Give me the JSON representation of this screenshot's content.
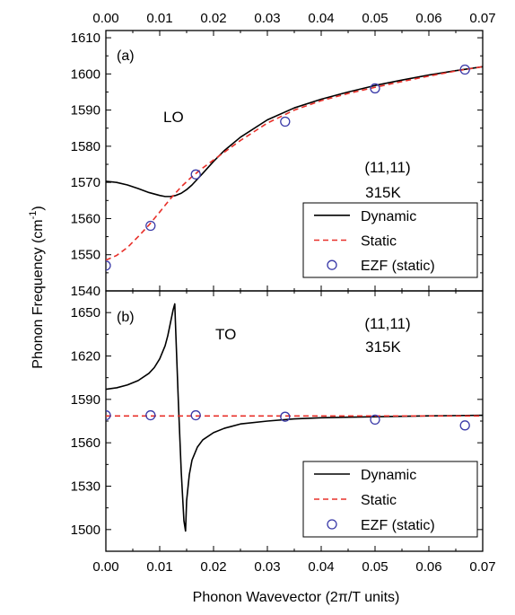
{
  "chart_data": [
    {
      "type": "line",
      "panel_label": "(a)",
      "mode_label": "LO",
      "condition": [
        "(11,11)",
        "315K"
      ],
      "xlim": [
        0.0,
        0.07
      ],
      "ylim": [
        1540,
        1612
      ],
      "x_ticks": [
        "0.00",
        "0.01",
        "0.02",
        "0.03",
        "0.04",
        "0.05",
        "0.06",
        "0.07"
      ],
      "y_ticks": [
        1540,
        1550,
        1560,
        1570,
        1580,
        1590,
        1600,
        1610
      ],
      "legend_position": "bottom-right",
      "series": [
        {
          "name": "Dynamic",
          "style": "solid",
          "color": "#000000",
          "x": [
            0.0,
            0.002,
            0.004,
            0.006,
            0.008,
            0.01,
            0.011,
            0.012,
            0.013,
            0.014,
            0.015,
            0.016,
            0.018,
            0.02,
            0.022,
            0.025,
            0.03,
            0.035,
            0.04,
            0.045,
            0.05,
            0.055,
            0.06,
            0.065,
            0.07
          ],
          "y": [
            1570.3,
            1570.0,
            1569.3,
            1568.3,
            1567.2,
            1566.4,
            1566.1,
            1566.1,
            1566.4,
            1567.0,
            1568.0,
            1569.3,
            1572.5,
            1575.8,
            1578.8,
            1582.5,
            1587.3,
            1590.6,
            1593.0,
            1595.0,
            1596.8,
            1598.3,
            1599.7,
            1600.9,
            1602.0
          ]
        },
        {
          "name": "Static",
          "style": "dashed",
          "color": "#e8302a",
          "x": [
            0.0,
            0.002,
            0.004,
            0.006,
            0.008,
            0.01,
            0.012,
            0.014,
            0.016,
            0.018,
            0.02,
            0.025,
            0.03,
            0.035,
            0.04,
            0.045,
            0.05,
            0.055,
            0.06,
            0.065,
            0.07
          ],
          "y": [
            1548.5,
            1549.8,
            1552.0,
            1555.0,
            1558.2,
            1561.8,
            1565.5,
            1568.8,
            1571.6,
            1574.0,
            1576.2,
            1581.6,
            1586.4,
            1590.0,
            1592.6,
            1594.6,
            1596.3,
            1597.9,
            1599.4,
            1600.8,
            1602.0
          ]
        },
        {
          "name": "EZF (static)",
          "style": "marker",
          "color": "#3a3aa8",
          "x": [
            0.0,
            0.0083,
            0.0167,
            0.0333,
            0.05,
            0.0667
          ],
          "y": [
            1547.0,
            1558.0,
            1572.2,
            1586.8,
            1596.0,
            1601.2
          ]
        }
      ]
    },
    {
      "type": "line",
      "panel_label": "(b)",
      "mode_label": "TO",
      "condition": [
        "(11,11)",
        "315K"
      ],
      "xlim": [
        0.0,
        0.07
      ],
      "ylim": [
        1485,
        1665
      ],
      "x_ticks": [
        "0.00",
        "0.01",
        "0.02",
        "0.03",
        "0.04",
        "0.05",
        "0.06",
        "0.07"
      ],
      "y_ticks": [
        1500,
        1530,
        1560,
        1590,
        1620,
        1650
      ],
      "legend_position": "bottom-right",
      "series": [
        {
          "name": "Dynamic",
          "style": "solid",
          "color": "#000000",
          "x": [
            0.0,
            0.002,
            0.004,
            0.006,
            0.008,
            0.009,
            0.01,
            0.011,
            0.0115,
            0.012,
            0.0125,
            0.0128,
            0.013,
            0.0135,
            0.014,
            0.0145,
            0.0148,
            0.015,
            0.0155,
            0.016,
            0.017,
            0.018,
            0.02,
            0.022,
            0.025,
            0.03,
            0.035,
            0.04,
            0.05,
            0.06,
            0.07
          ],
          "y": [
            1597,
            1598,
            1600,
            1603,
            1608,
            1612,
            1618,
            1627,
            1634,
            1643,
            1652,
            1656,
            1635,
            1585,
            1540,
            1506,
            1499,
            1520,
            1538,
            1548,
            1557,
            1562,
            1567,
            1570,
            1573,
            1575,
            1576.5,
            1577.3,
            1578,
            1578.6,
            1579
          ]
        },
        {
          "name": "Static",
          "style": "dashed",
          "color": "#e8302a",
          "x": [
            0.0,
            0.07
          ],
          "y": [
            1578.5,
            1578.5
          ]
        },
        {
          "name": "EZF (static)",
          "style": "marker",
          "color": "#3a3aa8",
          "x": [
            0.0,
            0.0083,
            0.0167,
            0.0333,
            0.05,
            0.0667
          ],
          "y": [
            1579.0,
            1579.0,
            1579.0,
            1578.0,
            1576.0,
            1572.0
          ]
        }
      ]
    }
  ],
  "axes": {
    "xlabel": "Phonon Wavevector (2π/T units)",
    "ylabel": "Phonon Frequency (cm",
    "ylabel_superscript": "-1",
    "ylabel_close": ")"
  },
  "legend": {
    "entries": [
      "Dynamic",
      "Static",
      "EZF (static)"
    ]
  }
}
